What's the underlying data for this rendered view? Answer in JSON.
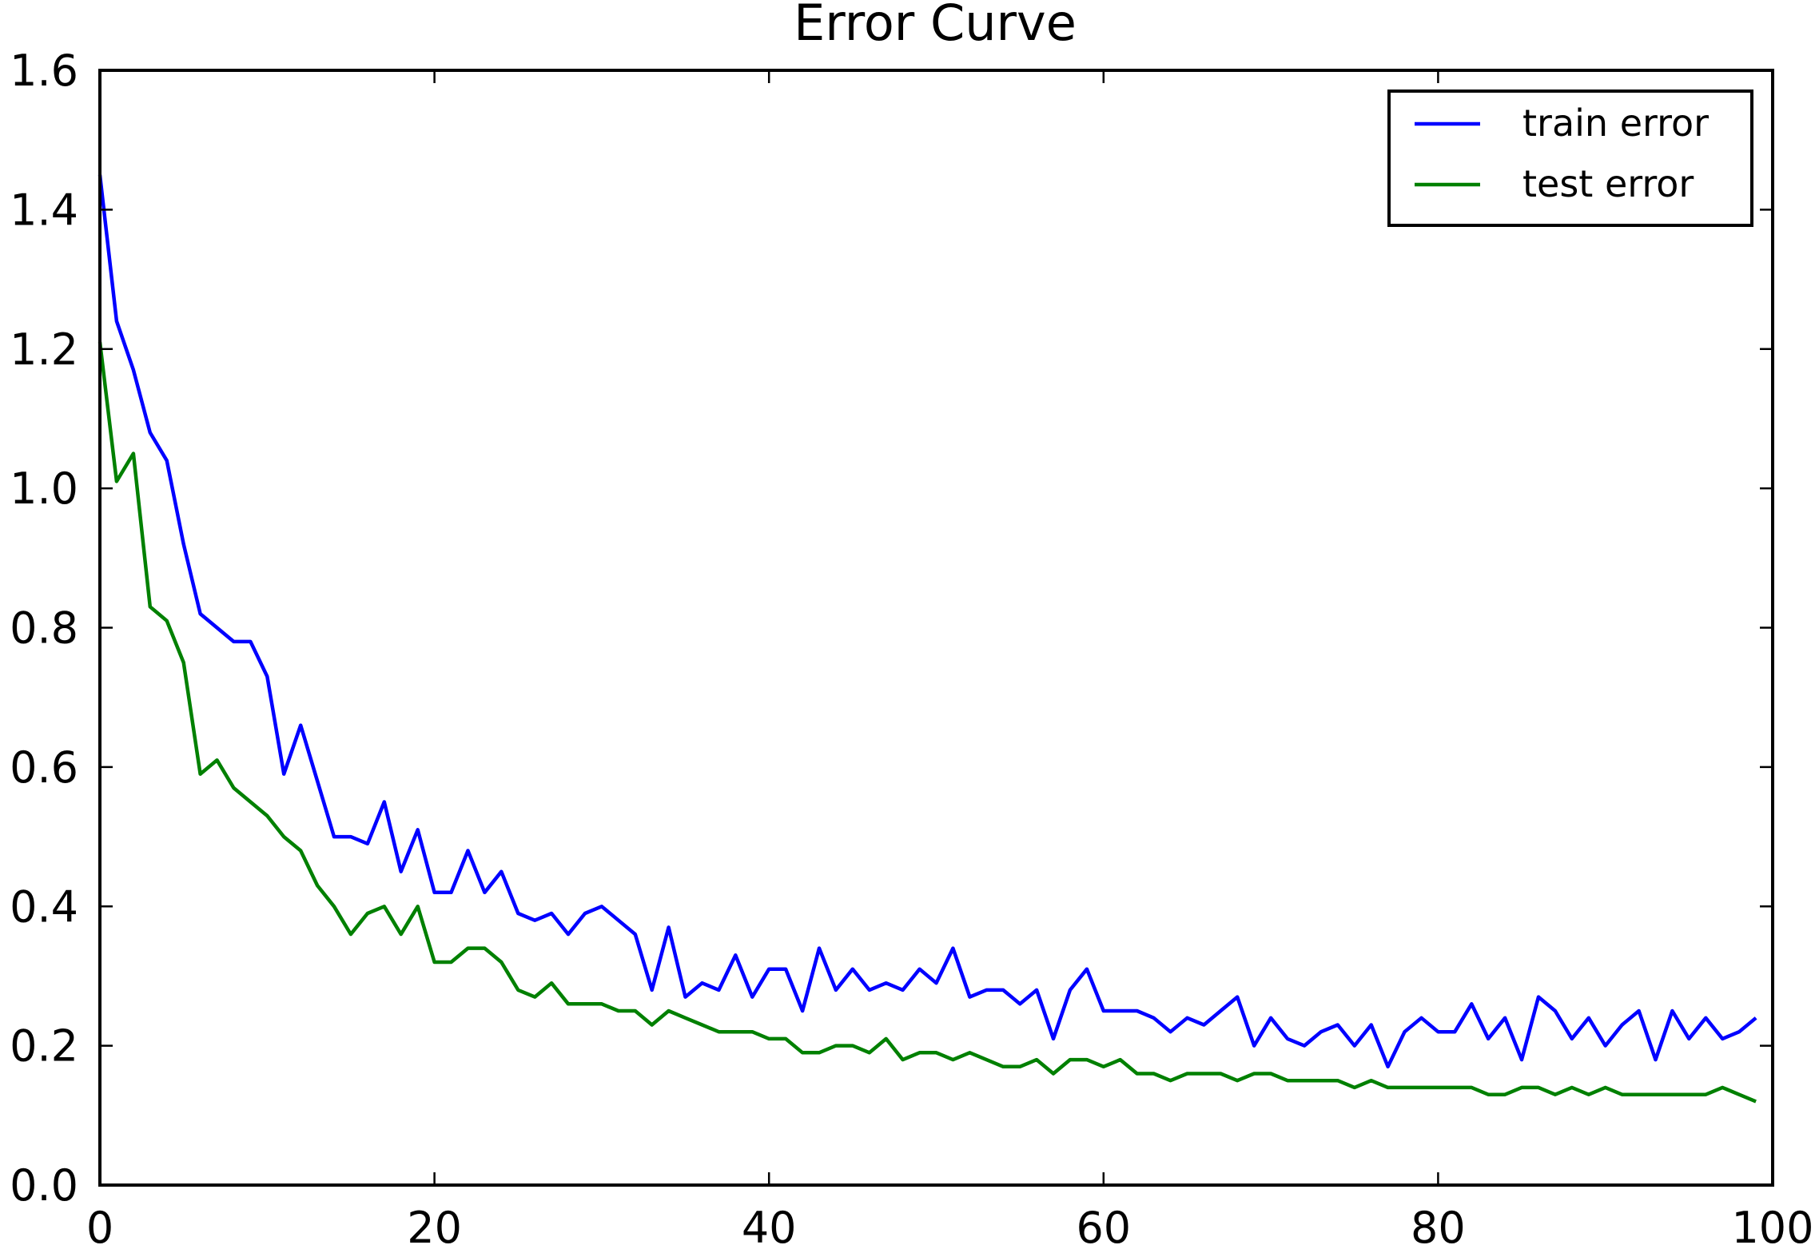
{
  "chart_data": {
    "type": "line",
    "title": "Error Curve",
    "xlabel": "",
    "ylabel": "",
    "xlim": [
      0,
      100
    ],
    "ylim": [
      0.0,
      1.6
    ],
    "x_ticks": [
      "0",
      "20",
      "40",
      "60",
      "80",
      "100"
    ],
    "y_ticks": [
      "0.0",
      "0.2",
      "0.4",
      "0.6",
      "0.8",
      "1.0",
      "1.2",
      "1.4",
      "1.6"
    ],
    "grid": false,
    "legend_position": "top-right",
    "series": [
      {
        "name": "train error",
        "color": "#0000ff",
        "x": [
          0,
          1,
          2,
          3,
          4,
          5,
          6,
          7,
          8,
          9,
          10,
          11,
          12,
          13,
          14,
          15,
          16,
          17,
          18,
          19,
          20,
          21,
          22,
          23,
          24,
          25,
          26,
          27,
          28,
          29,
          30,
          31,
          32,
          33,
          34,
          35,
          36,
          37,
          38,
          39,
          40,
          41,
          42,
          43,
          44,
          45,
          46,
          47,
          48,
          49,
          50,
          51,
          52,
          53,
          54,
          55,
          56,
          57,
          58,
          59,
          60,
          61,
          62,
          63,
          64,
          65,
          66,
          67,
          68,
          69,
          70,
          71,
          72,
          73,
          74,
          75,
          76,
          77,
          78,
          79,
          80,
          81,
          82,
          83,
          84,
          85,
          86,
          87,
          88,
          89,
          90,
          91,
          92,
          93,
          94,
          95,
          96,
          97,
          98,
          99
        ],
        "values": [
          1.45,
          1.24,
          1.17,
          1.08,
          1.04,
          0.92,
          0.82,
          0.8,
          0.78,
          0.78,
          0.73,
          0.59,
          0.66,
          0.58,
          0.5,
          0.5,
          0.49,
          0.55,
          0.45,
          0.51,
          0.42,
          0.42,
          0.48,
          0.42,
          0.45,
          0.39,
          0.38,
          0.39,
          0.36,
          0.39,
          0.4,
          0.38,
          0.36,
          0.28,
          0.37,
          0.27,
          0.29,
          0.28,
          0.33,
          0.27,
          0.31,
          0.31,
          0.25,
          0.34,
          0.28,
          0.31,
          0.28,
          0.29,
          0.28,
          0.31,
          0.29,
          0.34,
          0.27,
          0.28,
          0.28,
          0.26,
          0.28,
          0.21,
          0.28,
          0.31,
          0.25,
          0.25,
          0.25,
          0.24,
          0.22,
          0.24,
          0.23,
          0.25,
          0.27,
          0.2,
          0.24,
          0.21,
          0.2,
          0.22,
          0.23,
          0.2,
          0.23,
          0.17,
          0.22,
          0.24,
          0.22,
          0.22,
          0.26,
          0.21,
          0.24,
          0.18,
          0.27,
          0.25,
          0.21,
          0.24,
          0.2,
          0.23,
          0.25,
          0.18,
          0.25,
          0.21,
          0.24,
          0.21,
          0.22,
          0.24
        ]
      },
      {
        "name": "test error",
        "color": "#008000",
        "x": [
          0,
          1,
          2,
          3,
          4,
          5,
          6,
          7,
          8,
          9,
          10,
          11,
          12,
          13,
          14,
          15,
          16,
          17,
          18,
          19,
          20,
          21,
          22,
          23,
          24,
          25,
          26,
          27,
          28,
          29,
          30,
          31,
          32,
          33,
          34,
          35,
          36,
          37,
          38,
          39,
          40,
          41,
          42,
          43,
          44,
          45,
          46,
          47,
          48,
          49,
          50,
          51,
          52,
          53,
          54,
          55,
          56,
          57,
          58,
          59,
          60,
          61,
          62,
          63,
          64,
          65,
          66,
          67,
          68,
          69,
          70,
          71,
          72,
          73,
          74,
          75,
          76,
          77,
          78,
          79,
          80,
          81,
          82,
          83,
          84,
          85,
          86,
          87,
          88,
          89,
          90,
          91,
          92,
          93,
          94,
          95,
          96,
          97,
          98,
          99
        ],
        "values": [
          1.21,
          1.01,
          1.05,
          0.83,
          0.81,
          0.75,
          0.59,
          0.61,
          0.57,
          0.55,
          0.53,
          0.5,
          0.48,
          0.43,
          0.4,
          0.36,
          0.39,
          0.4,
          0.36,
          0.4,
          0.32,
          0.32,
          0.34,
          0.34,
          0.32,
          0.28,
          0.27,
          0.29,
          0.26,
          0.26,
          0.26,
          0.25,
          0.25,
          0.23,
          0.25,
          0.24,
          0.23,
          0.22,
          0.22,
          0.22,
          0.21,
          0.21,
          0.19,
          0.19,
          0.2,
          0.2,
          0.19,
          0.21,
          0.18,
          0.19,
          0.19,
          0.18,
          0.19,
          0.18,
          0.17,
          0.17,
          0.18,
          0.16,
          0.18,
          0.18,
          0.17,
          0.18,
          0.16,
          0.16,
          0.15,
          0.16,
          0.16,
          0.16,
          0.15,
          0.16,
          0.16,
          0.15,
          0.15,
          0.15,
          0.15,
          0.14,
          0.15,
          0.14,
          0.14,
          0.14,
          0.14,
          0.14,
          0.14,
          0.13,
          0.13,
          0.14,
          0.14,
          0.13,
          0.14,
          0.13,
          0.14,
          0.13,
          0.13,
          0.13,
          0.13,
          0.13,
          0.13,
          0.14,
          0.13,
          0.12
        ]
      }
    ]
  }
}
